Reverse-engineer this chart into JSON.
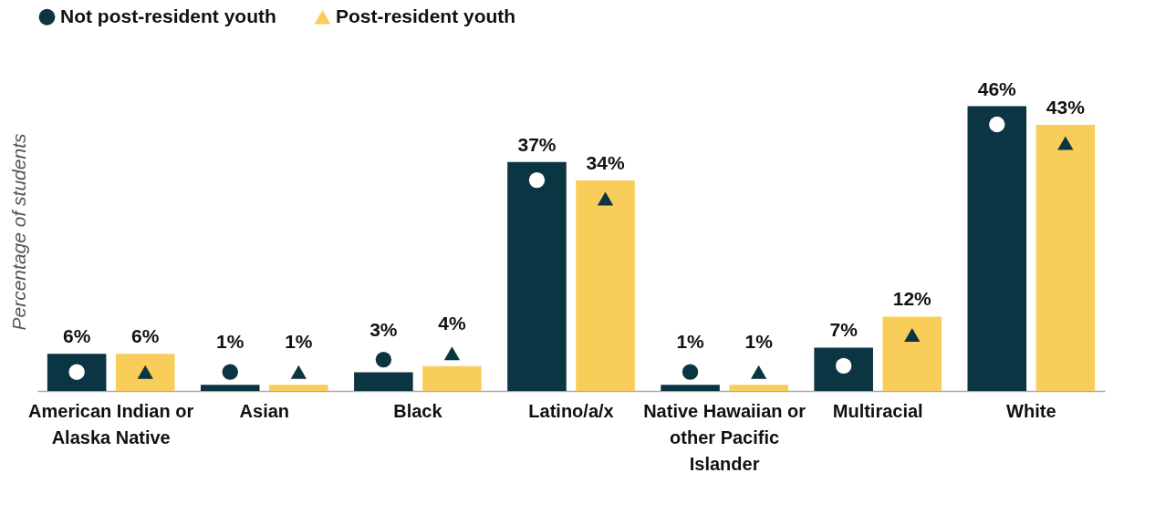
{
  "chart_data": {
    "type": "bar",
    "ylabel": "Percentage of students",
    "legend": "top",
    "tick_labels": "x",
    "grid": false,
    "categories": [
      "American Indian or Alaska Native",
      "Asian",
      "Black",
      "Latino/a/x",
      "Native Hawaiian or other Pacific Islander",
      "Multiracial",
      "White"
    ],
    "series": [
      {
        "name": "Not post-resident youth",
        "color": "#0b3542",
        "marker": "circle",
        "values": [
          6,
          1,
          3,
          37,
          1,
          7,
          46
        ],
        "value_labels": [
          "6%",
          "1%",
          "3%",
          "37%",
          "1%",
          "7%",
          "46%"
        ]
      },
      {
        "name": "Post-resident youth",
        "color": "#f9cd5a",
        "marker": "triangle",
        "values": [
          6,
          1,
          4,
          34,
          1,
          12,
          43
        ],
        "value_labels": [
          "6%",
          "1%",
          "4%",
          "34%",
          "1%",
          "12%",
          "43%"
        ]
      }
    ]
  }
}
